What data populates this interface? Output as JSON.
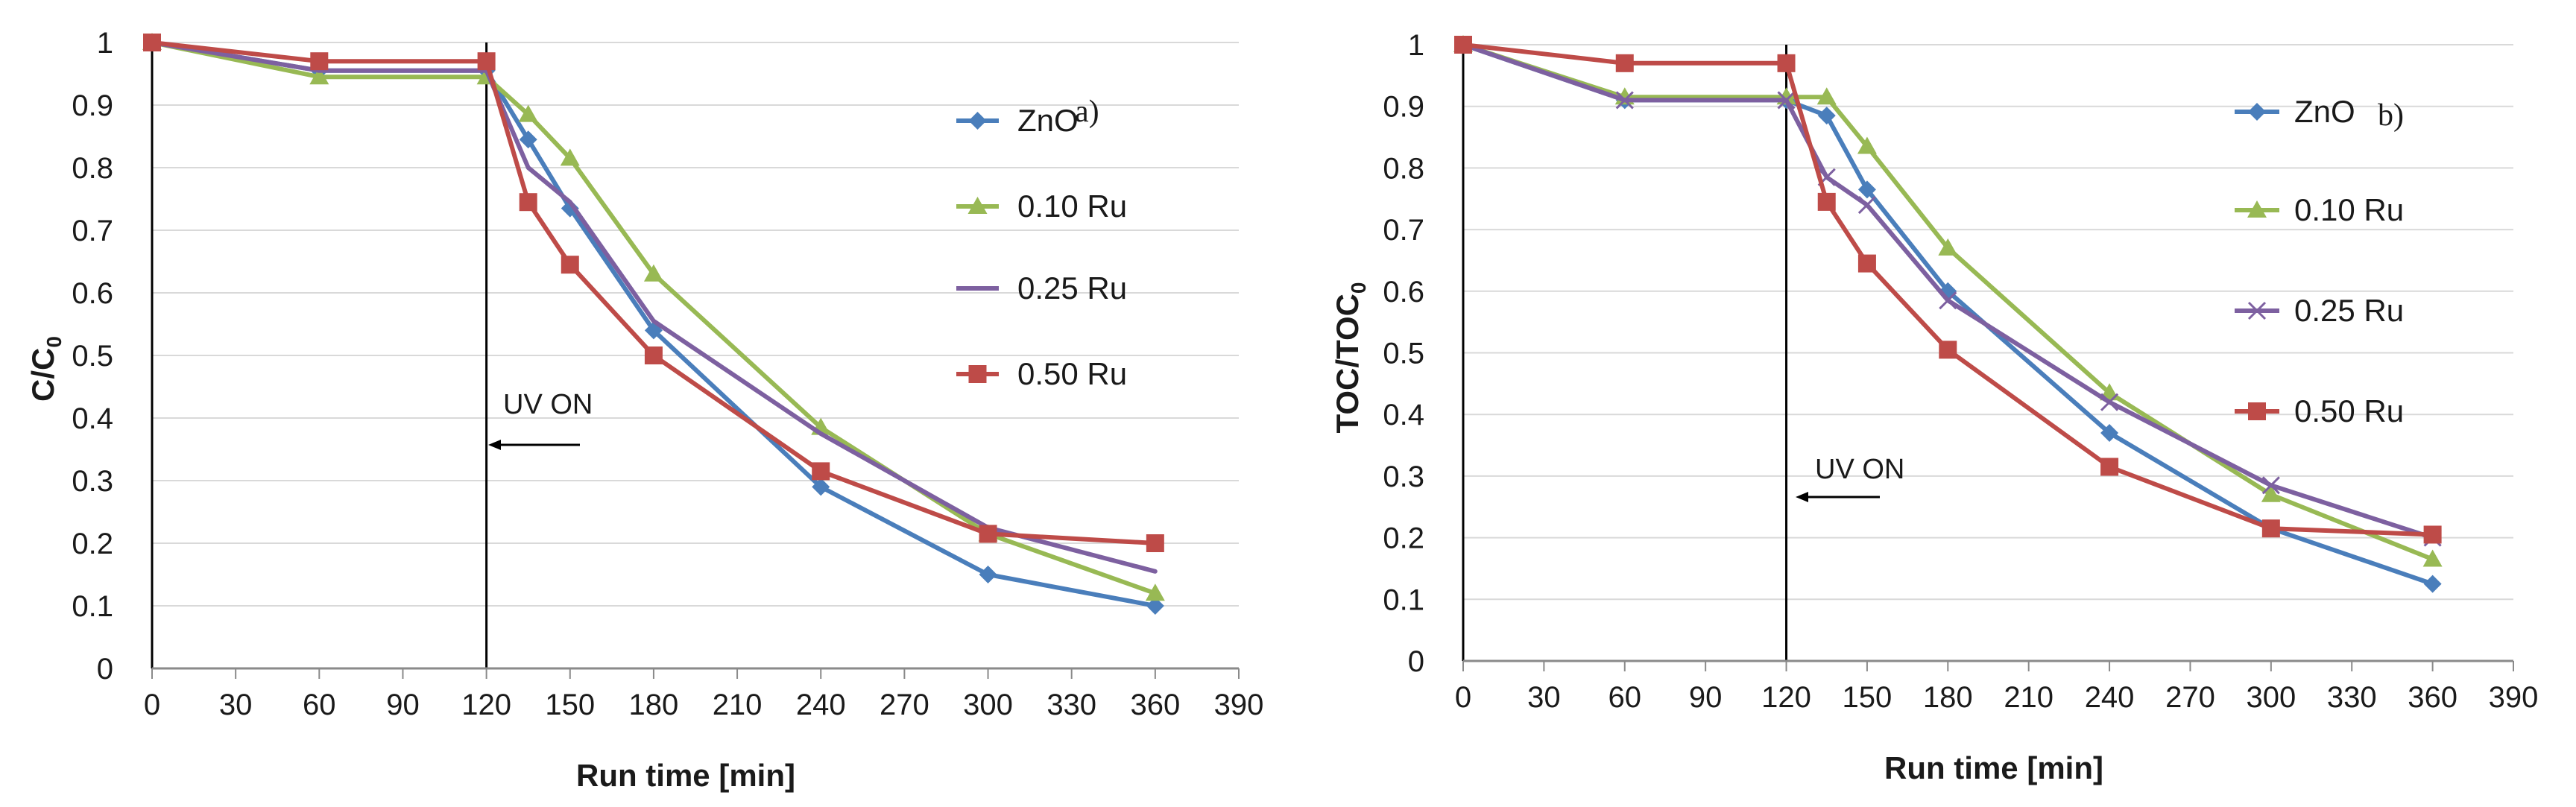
{
  "chart_data": [
    {
      "type": "line",
      "panel_label": "a)",
      "xlabel": "Run time [min]",
      "ylabel_main": "C/C",
      "ylabel_sub": "0",
      "xlim": [
        0,
        390
      ],
      "ylim": [
        0,
        1
      ],
      "xticks": [
        "0",
        "30",
        "60",
        "90",
        "120",
        "150",
        "180",
        "210",
        "240",
        "270",
        "300",
        "330",
        "360",
        "390"
      ],
      "yticks": [
        "0",
        "0.1",
        "0.2",
        "0.3",
        "0.4",
        "0.5",
        "0.6",
        "0.7",
        "0.8",
        "0.9",
        "1"
      ],
      "annotation": {
        "text": "UV ON",
        "x": 120
      },
      "series": [
        {
          "name": "ZnO",
          "color": "#4a7ebb",
          "marker": "diamond",
          "x": [
            0,
            60,
            120,
            135,
            150,
            180,
            240,
            300,
            360
          ],
          "y": [
            1.0,
            0.955,
            0.955,
            0.845,
            0.735,
            0.54,
            0.29,
            0.15,
            0.1
          ]
        },
        {
          "name": "0.10 Ru",
          "color": "#98b954",
          "marker": "triangle",
          "x": [
            0,
            60,
            120,
            135,
            150,
            180,
            240,
            300,
            360
          ],
          "y": [
            1.0,
            0.945,
            0.945,
            0.885,
            0.815,
            0.63,
            0.385,
            0.215,
            0.12
          ]
        },
        {
          "name": "0.25 Ru",
          "color": "#7d60a0",
          "marker": "none",
          "x": [
            0,
            60,
            120,
            135,
            150,
            180,
            240,
            300,
            360
          ],
          "y": [
            1.0,
            0.955,
            0.955,
            0.8,
            0.745,
            0.555,
            0.375,
            0.225,
            0.155
          ]
        },
        {
          "name": "0.50 Ru",
          "color": "#be4b48",
          "marker": "square",
          "x": [
            0,
            60,
            120,
            135,
            150,
            180,
            240,
            300,
            360
          ],
          "y": [
            1.0,
            0.97,
            0.97,
            0.745,
            0.645,
            0.5,
            0.315,
            0.215,
            0.2
          ]
        }
      ]
    },
    {
      "type": "line",
      "panel_label": "b)",
      "xlabel": "Run time [min]",
      "ylabel_main": "TOC/TOC",
      "ylabel_sub": "0",
      "xlim": [
        0,
        390
      ],
      "ylim": [
        0,
        1
      ],
      "xticks": [
        "0",
        "30",
        "60",
        "90",
        "120",
        "150",
        "180",
        "210",
        "240",
        "270",
        "300",
        "330",
        "360",
        "390"
      ],
      "yticks": [
        "0",
        "0.1",
        "0.2",
        "0.3",
        "0.4",
        "0.5",
        "0.6",
        "0.7",
        "0.8",
        "0.9",
        "1"
      ],
      "annotation": {
        "text": "UV ON",
        "x": 120
      },
      "series": [
        {
          "name": "ZnO",
          "color": "#4a7ebb",
          "marker": "diamond",
          "x": [
            0,
            60,
            120,
            135,
            150,
            180,
            240,
            300,
            360
          ],
          "y": [
            1.0,
            0.91,
            0.91,
            0.885,
            0.765,
            0.6,
            0.37,
            0.215,
            0.125
          ]
        },
        {
          "name": "0.10 Ru",
          "color": "#98b954",
          "marker": "triangle",
          "x": [
            0,
            60,
            120,
            135,
            150,
            180,
            240,
            300,
            360
          ],
          "y": [
            1.0,
            0.915,
            0.915,
            0.915,
            0.835,
            0.67,
            0.435,
            0.27,
            0.165
          ]
        },
        {
          "name": "0.25 Ru",
          "color": "#7d60a0",
          "marker": "cross",
          "x": [
            0,
            60,
            120,
            135,
            150,
            180,
            240,
            300,
            360
          ],
          "y": [
            1.0,
            0.91,
            0.91,
            0.785,
            0.74,
            0.585,
            0.42,
            0.285,
            0.2
          ]
        },
        {
          "name": "0.50 Ru",
          "color": "#be4b48",
          "marker": "square",
          "x": [
            0,
            60,
            120,
            135,
            150,
            180,
            240,
            300,
            360
          ],
          "y": [
            1.0,
            0.97,
            0.97,
            0.745,
            0.645,
            0.505,
            0.315,
            0.215,
            0.205
          ]
        }
      ]
    }
  ]
}
